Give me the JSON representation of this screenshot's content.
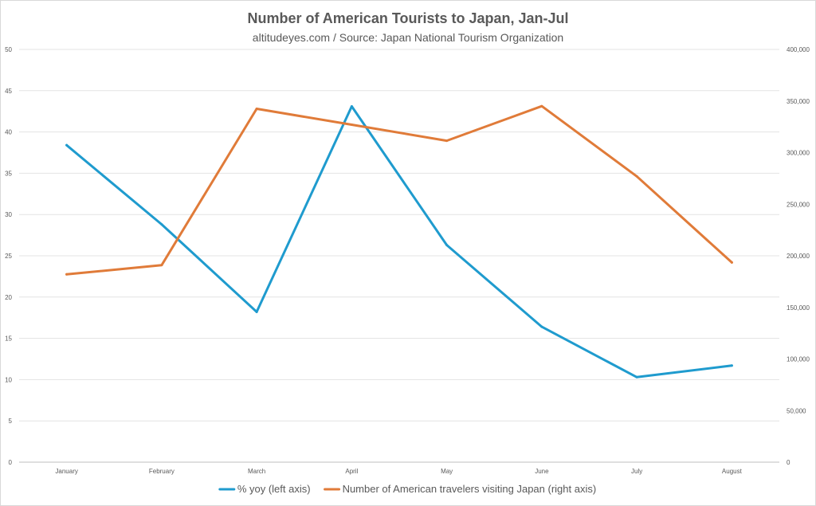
{
  "chart_data": {
    "type": "line",
    "title": "Number of American Tourists to Japan, Jan-Jul",
    "subtitle": "altitudeyes.com / Source: Japan National Tourism Organization",
    "categories": [
      "January",
      "February",
      "March",
      "April",
      "May",
      "June",
      "July",
      "August"
    ],
    "y_left": {
      "range": [
        0,
        50
      ],
      "ticks": [
        0,
        5,
        10,
        15,
        20,
        25,
        30,
        35,
        40,
        45,
        50
      ],
      "tick_labels": [
        "0",
        "5",
        "10",
        "15",
        "20",
        "25",
        "30",
        "35",
        "40",
        "45",
        "50"
      ]
    },
    "y_right": {
      "range": [
        0,
        400000
      ],
      "ticks": [
        0,
        50000,
        100000,
        150000,
        200000,
        250000,
        300000,
        350000,
        400000
      ],
      "tick_labels": [
        "0",
        "50,000",
        "100,000",
        "150,000",
        "200,000",
        "250,000",
        "300,000",
        "350,000",
        "400,000"
      ]
    },
    "series": [
      {
        "name": "% yoy (left axis)",
        "axis": "left",
        "color": "#1f9bce",
        "values": [
          38.4,
          28.8,
          18.2,
          43.1,
          26.3,
          16.4,
          10.3,
          11.7
        ]
      },
      {
        "name": "Number of American travelers visiting Japan (right axis)",
        "axis": "right",
        "color": "#e07b39",
        "values": [
          182000,
          191000,
          342500,
          327000,
          311500,
          345000,
          277000,
          193500
        ]
      }
    ],
    "grid": true,
    "legend_position": "bottom"
  }
}
